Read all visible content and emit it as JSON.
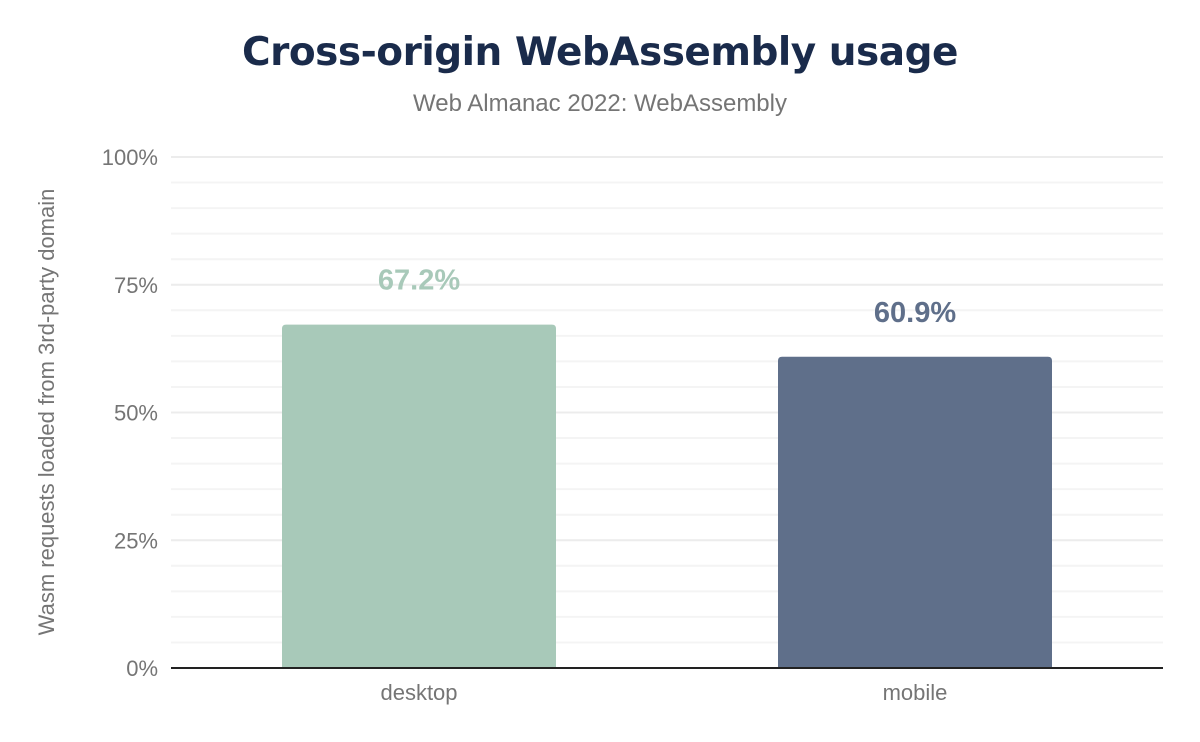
{
  "title": "Cross-origin WebAssembly usage",
  "subtitle": "Web Almanac 2022: WebAssembly",
  "chart_data": {
    "type": "bar",
    "title": "Cross-origin WebAssembly usage",
    "subtitle": "Web Almanac 2022: WebAssembly",
    "xlabel": "",
    "ylabel": "Wasm requests loaded from 3rd-party domain",
    "categories": [
      "desktop",
      "mobile"
    ],
    "values": [
      67.2,
      60.9
    ],
    "data_labels": [
      "67.2%",
      "60.9%"
    ],
    "colors": [
      "#a8c9b9",
      "#5f6f8a"
    ],
    "ylim": [
      0,
      100
    ],
    "yticks": [
      0,
      25,
      50,
      75,
      100
    ],
    "ytick_labels": [
      "0%",
      "25%",
      "50%",
      "75%",
      "100%"
    ],
    "grid": true,
    "minor_grid_step": 5
  }
}
